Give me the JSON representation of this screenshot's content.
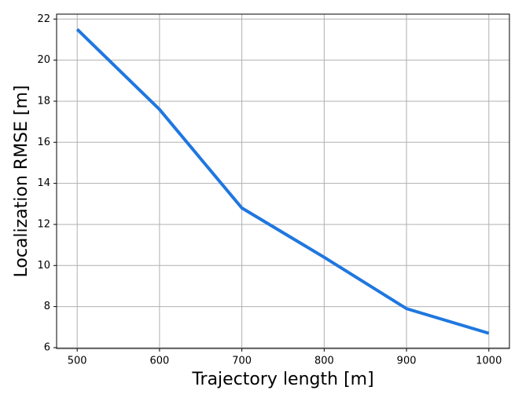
{
  "chart_data": {
    "type": "line",
    "xlabel": "Trajectory length [m]",
    "ylabel": "Localization RMSE [m]",
    "x": [
      500,
      600,
      700,
      800,
      900,
      1000
    ],
    "series": [
      {
        "color": "#1f77e0",
        "values": [
          21.5,
          17.6,
          12.8,
          10.4,
          7.9,
          6.7
        ]
      }
    ],
    "xlim": [
      475,
      1025
    ],
    "xticks": [
      500,
      600,
      700,
      800,
      900,
      1000
    ],
    "ylim": [
      5.96,
      22.24
    ],
    "yticks": [
      6,
      8,
      10,
      12,
      14,
      16,
      18,
      20,
      22
    ],
    "grid": true
  }
}
